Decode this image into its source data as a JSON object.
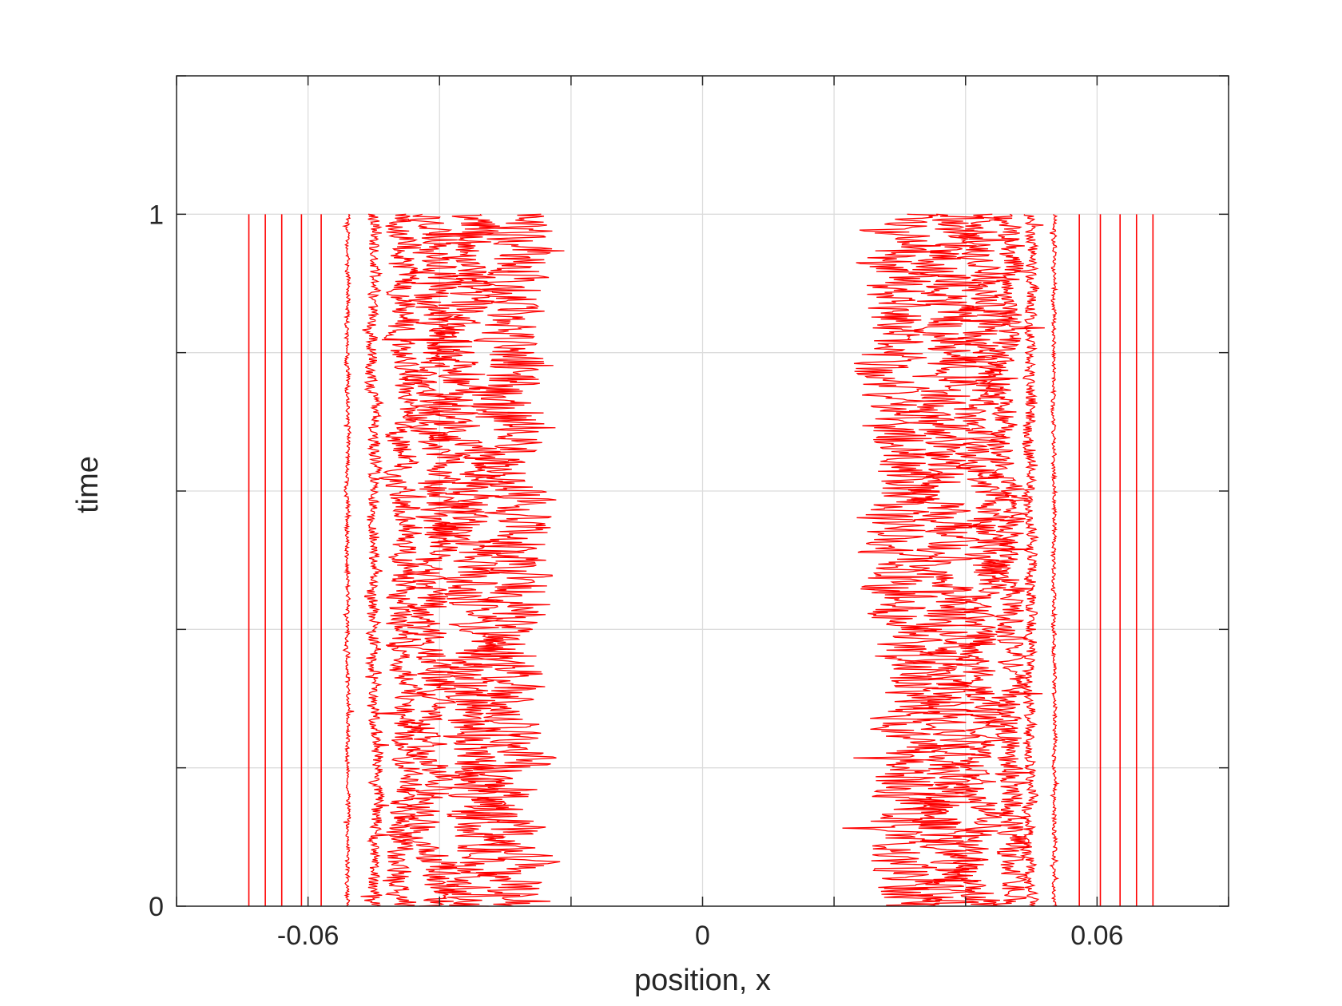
{
  "chart_data": {
    "type": "line",
    "xlabel": "position, x",
    "ylabel": "time",
    "xlim": [
      -0.08,
      0.08
    ],
    "ylim": [
      0,
      1.2
    ],
    "x_ticks": [
      {
        "value": -0.06,
        "label": "-0.06"
      },
      {
        "value": 0,
        "label": "0"
      },
      {
        "value": 0.06,
        "label": "0.06"
      }
    ],
    "y_ticks": [
      {
        "value": 0,
        "label": "0"
      },
      {
        "value": 1,
        "label": "1"
      }
    ],
    "x_grid": [
      -0.08,
      -0.06,
      -0.04,
      -0.02,
      0,
      0.02,
      0.04,
      0.06,
      0.08
    ],
    "y_grid": [
      0,
      0.2,
      0.4,
      0.6,
      0.8,
      1.0,
      1.2
    ],
    "grid": true,
    "line_color": "#ff0000",
    "series": [
      {
        "center": -0.069,
        "spread": 0.0
      },
      {
        "center": -0.0665,
        "spread": 0.0
      },
      {
        "center": -0.064,
        "spread": 0.0
      },
      {
        "center": -0.061,
        "spread": 0.0
      },
      {
        "center": -0.058,
        "spread": 0.0
      },
      {
        "center": -0.054,
        "spread": 0.0004
      },
      {
        "center": -0.05,
        "spread": 0.0012
      },
      {
        "center": -0.0455,
        "spread": 0.0028
      },
      {
        "center": -0.041,
        "spread": 0.004
      },
      {
        "center": -0.0355,
        "spread": 0.0055
      },
      {
        "center": -0.029,
        "spread": 0.0068
      },
      {
        "center": 0.031,
        "spread": 0.0068
      },
      {
        "center": 0.037,
        "spread": 0.0055
      },
      {
        "center": 0.0425,
        "spread": 0.004
      },
      {
        "center": 0.0465,
        "spread": 0.0028
      },
      {
        "center": 0.0498,
        "spread": 0.0012
      },
      {
        "center": 0.0535,
        "spread": 0.0004
      },
      {
        "center": 0.0573,
        "spread": 0.0
      },
      {
        "center": 0.0605,
        "spread": 0.0
      },
      {
        "center": 0.0635,
        "spread": 0.0
      },
      {
        "center": 0.066,
        "spread": 0.0
      },
      {
        "center": 0.0685,
        "spread": 0.0
      }
    ]
  }
}
